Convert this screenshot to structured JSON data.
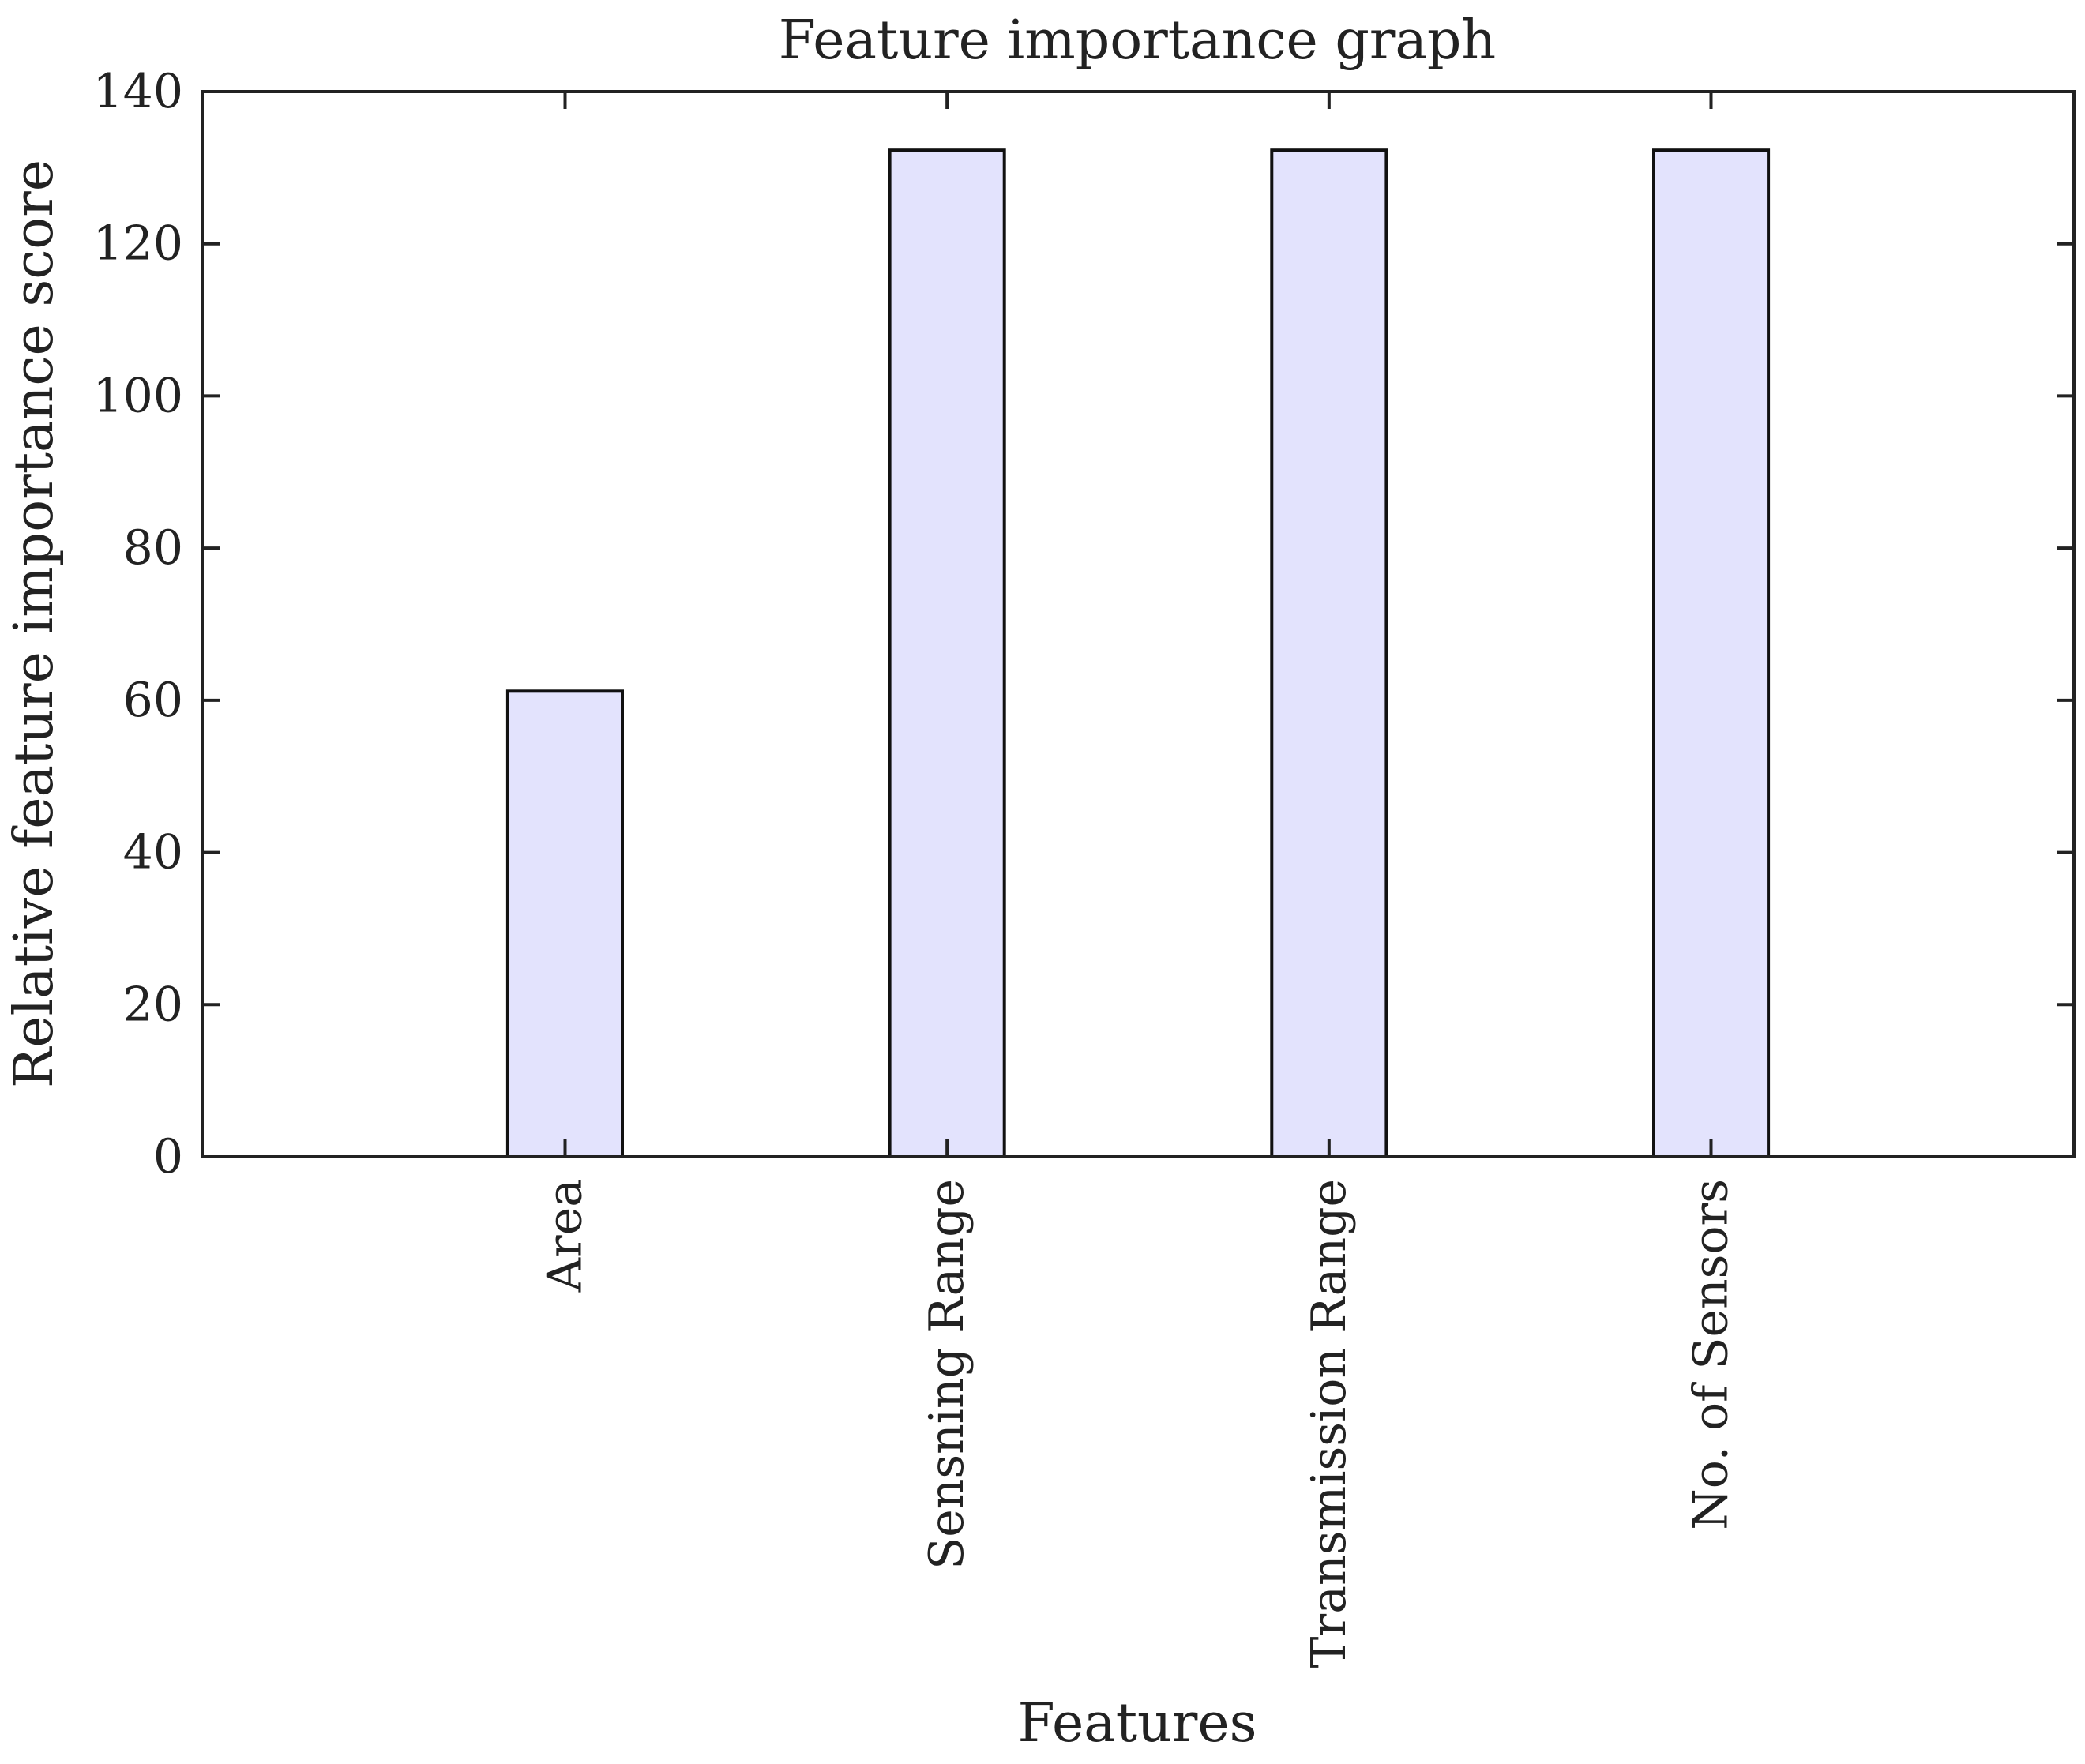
{
  "chart_data": {
    "type": "bar",
    "title": "Feature importance graph",
    "xlabel": "Features",
    "ylabel": "Relative feature importance score",
    "categories": [
      "Area",
      "Sensning Range",
      "Transmission Range",
      "No. of Sensors"
    ],
    "values": [
      61.2,
      132.3,
      132.3,
      132.3
    ],
    "ylim": [
      0,
      140
    ],
    "yticks": [
      0,
      20,
      40,
      60,
      80,
      100,
      120,
      140
    ],
    "ytick_labels": [
      "0",
      "20",
      "40",
      "60",
      "80",
      "100",
      "120",
      "140"
    ],
    "bar_color": "#e3e3fd",
    "bar_edge_color": "#111111",
    "grid": false,
    "legend": "none"
  }
}
